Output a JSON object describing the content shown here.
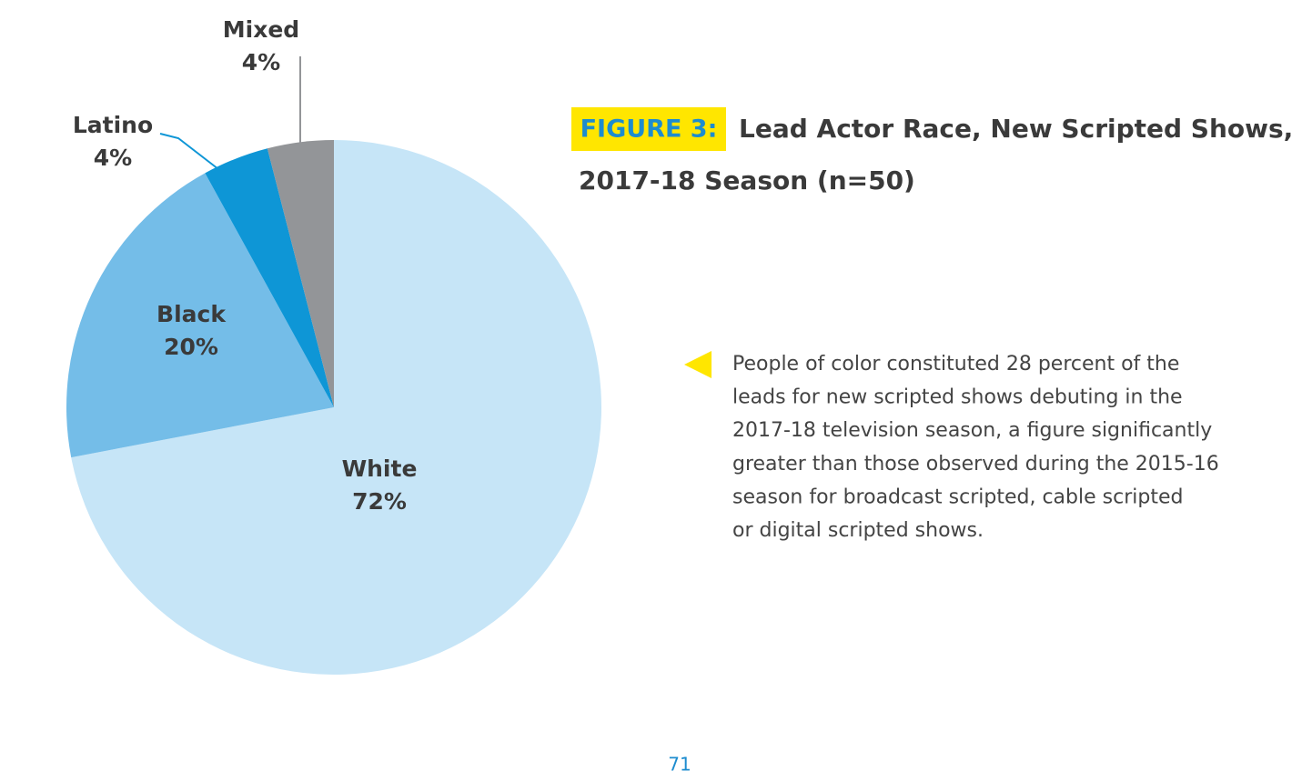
{
  "chart_data": {
    "type": "pie",
    "figure_label": "FIGURE 3:",
    "title": [
      "Lead Actor Race, New Scripted Shows,",
      "2017-18 Season (n=50)"
    ],
    "categories": [
      "White",
      "Black",
      "Latino",
      "Mixed"
    ],
    "values": [
      72,
      20,
      4,
      4
    ],
    "value_labels": [
      "72%",
      "20%",
      "4%",
      "4%"
    ],
    "colors": [
      "#c6e5f7",
      "#74bde8",
      "#0e96d6",
      "#939598"
    ]
  },
  "note": [
    "People of color constituted 28 percent of the",
    "leads for new scripted shows debuting in the",
    "2017-18 television season, a figure significantly",
    "greater than those observed during the 2015-16",
    "season for broadcast scripted, cable scripted",
    "or digital scripted shows."
  ],
  "page_number": "71"
}
